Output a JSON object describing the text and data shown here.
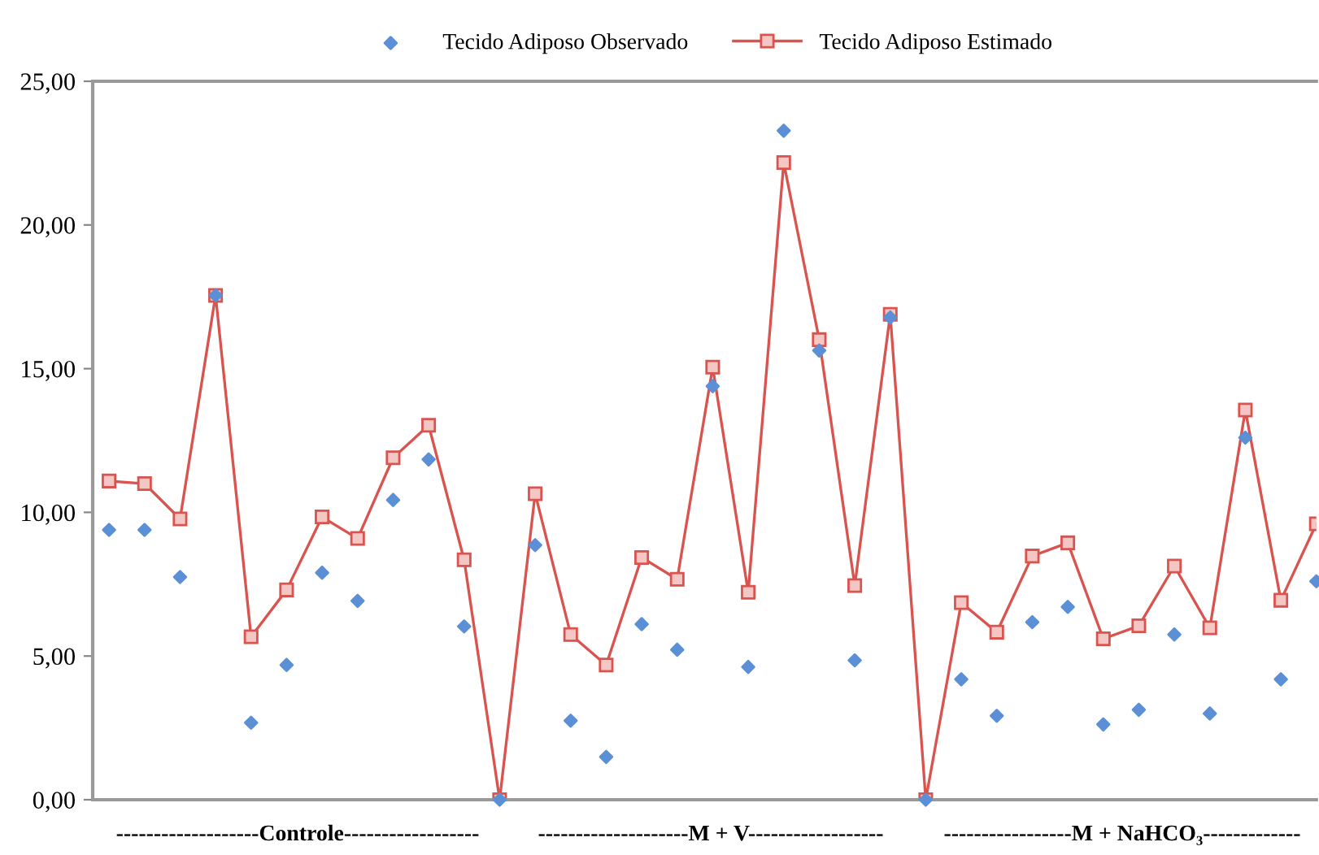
{
  "chart_data": {
    "type": "line",
    "categories": [
      null,
      null,
      null,
      null,
      null,
      null,
      null,
      null,
      null,
      null,
      null,
      null,
      null,
      null,
      null,
      null,
      null,
      null,
      null,
      null,
      null,
      null,
      null,
      null,
      null,
      null,
      null,
      null,
      null,
      null,
      null,
      null,
      null,
      null,
      null
    ],
    "series": [
      {
        "name": "Tecido Adiposo Observado",
        "type": "scatter",
        "marker": "diamond",
        "color": "#5b8fd6",
        "values": [
          9.39,
          9.39,
          7.75,
          17.55,
          2.68,
          4.69,
          7.9,
          6.92,
          10.43,
          11.84,
          6.03,
          0,
          8.86,
          2.75,
          1.49,
          6.11,
          5.22,
          14.39,
          4.62,
          23.28,
          15.63,
          4.85,
          16.78,
          0,
          4.19,
          2.92,
          6.18,
          6.71,
          2.62,
          3.13,
          5.75,
          3.0,
          12.6,
          4.19,
          7.6
        ]
      },
      {
        "name": "Tecido Adiposo Estimado",
        "marker": "square",
        "color": "#d9534f",
        "values": [
          11.09,
          11.0,
          9.77,
          17.55,
          5.67,
          7.3,
          9.84,
          9.09,
          11.9,
          13.03,
          8.35,
          0,
          10.65,
          5.75,
          4.69,
          8.43,
          7.67,
          15.05,
          7.22,
          22.17,
          16.01,
          7.45,
          16.89,
          0,
          6.86,
          5.83,
          8.48,
          8.94,
          5.6,
          6.05,
          8.13,
          5.98,
          13.56,
          6.94,
          9.6
        ]
      }
    ],
    "ylim": [
      0,
      25
    ],
    "yticks": [
      {
        "value": 0,
        "label": "0,00"
      },
      {
        "value": 5,
        "label": "5,00"
      },
      {
        "value": 10,
        "label": "10,00"
      },
      {
        "value": 15,
        "label": "15,00"
      },
      {
        "value": 20,
        "label": "20,00"
      },
      {
        "value": 25,
        "label": "25,00"
      }
    ],
    "grid": false,
    "legend": "top",
    "annotations": [
      "-------------------Controle------------------",
      "--------------------M + V------------------",
      "-----------------M + NaHCO₃-------------"
    ]
  }
}
